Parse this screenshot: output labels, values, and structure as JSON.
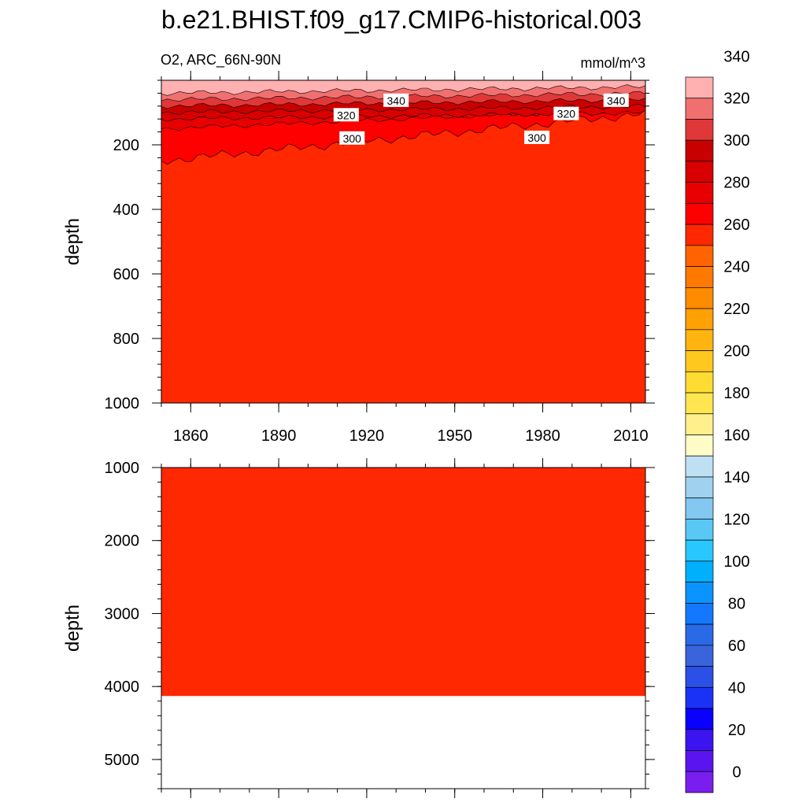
{
  "title": "b.e21.BHIST.f09_g17.CMIP6-historical.003",
  "chart_data": {
    "type": "heatmap",
    "title": "b.e21.BHIST.f09_g17.CMIP6-historical.003",
    "variable_label": "O2, ARC_66N-90N",
    "units_label": "mmol/m^3",
    "x_range": [
      1850,
      2015
    ],
    "x_ticks": [
      1860,
      1890,
      1920,
      1950,
      1980,
      2010
    ],
    "panels": [
      {
        "name": "upper",
        "ylabel": "depth",
        "ylim": [
          0,
          1000
        ],
        "inverted": true,
        "y_ticks": [
          200,
          400,
          600,
          800,
          1000
        ],
        "fill_color": "#ff2800",
        "bands": [
          {
            "max_depth": 40,
            "color": "#ffb0b0"
          },
          {
            "max_depth": 60,
            "color": "#f07070"
          },
          {
            "max_depth": 80,
            "color": "#e03838"
          },
          {
            "max_depth": 100,
            "color": "#c80000"
          },
          {
            "max_depth": 120,
            "color": "#d80000"
          },
          {
            "max_depth": 150,
            "color": "#e80000"
          },
          {
            "max_depth": 250,
            "color": "#ff0000"
          }
        ],
        "contour_labels": [
          {
            "text": "340",
            "x": 1930,
            "y": 63
          },
          {
            "text": "340",
            "x": 2005,
            "y": 63
          },
          {
            "text": "320",
            "x": 1913,
            "y": 108
          },
          {
            "text": "320",
            "x": 1988,
            "y": 104
          },
          {
            "text": "300",
            "x": 1915,
            "y": 180
          },
          {
            "text": "300",
            "x": 1978,
            "y": 178
          }
        ]
      },
      {
        "name": "lower",
        "ylabel": "depth",
        "ylim": [
          1000,
          5400
        ],
        "inverted": true,
        "y_ticks": [
          1000,
          2000,
          3000,
          4000,
          5000
        ],
        "fill_color": "#ff2800",
        "data_bottom_depth": 4130
      }
    ],
    "colorbar": {
      "labels": [
        "0",
        "20",
        "40",
        "60",
        "80",
        "100",
        "120",
        "140",
        "160",
        "180",
        "200",
        "220",
        "240",
        "260",
        "280",
        "300",
        "320",
        "340"
      ],
      "colors": [
        "#7a1ef0",
        "#5a14f0",
        "#3c14f0",
        "#0a00ff",
        "#1a32f5",
        "#2a50e8",
        "#3a64dc",
        "#2a6ae6",
        "#1478ff",
        "#0a94ff",
        "#00b0ff",
        "#28c8ff",
        "#5ac8f5",
        "#82c8f0",
        "#a0d2f0",
        "#bee0f2",
        "#fffcc8",
        "#fff08c",
        "#ffe650",
        "#ffdc32",
        "#ffc81e",
        "#ffb40f",
        "#ffa005",
        "#ff8c00",
        "#ff7800",
        "#ff6400",
        "#ff2800",
        "#ff0000",
        "#e80000",
        "#d80000",
        "#c80000",
        "#e03838",
        "#f07070",
        "#ffb0b0"
      ]
    }
  }
}
